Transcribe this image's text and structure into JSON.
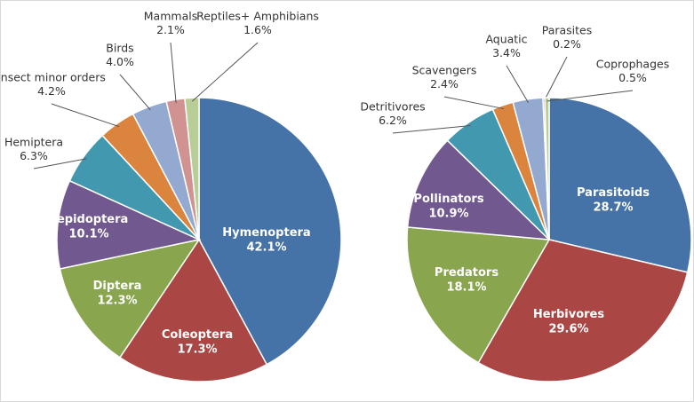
{
  "chart_data": [
    {
      "type": "pie",
      "categories": [
        "Hymenoptera",
        "Coleoptera",
        "Diptera",
        "Lepidoptera",
        "Hemiptera",
        "Insect minor orders",
        "Birds",
        "Mammals",
        "Reptiles+ Amphibians"
      ],
      "values": [
        42.1,
        17.3,
        12.3,
        10.1,
        6.3,
        4.2,
        4.0,
        2.1,
        1.6
      ],
      "value_labels": [
        "42.1%",
        "17.3%",
        "12.3%",
        "10.1%",
        "6.3%",
        "4.2%",
        "4.0%",
        "2.1%",
        "1.6%"
      ],
      "colors": [
        "#4572a7",
        "#aa4643",
        "#89a54e",
        "#71588f",
        "#4198af",
        "#db843d",
        "#93a9cf",
        "#d19392",
        "#b9cd96"
      ]
    },
    {
      "type": "pie",
      "categories": [
        "Parasitoids",
        "Herbivores",
        "Predators",
        "Pollinators",
        "Detritivores",
        "Scavengers",
        "Aquatic",
        "Parasites",
        "Coprophages"
      ],
      "values": [
        28.7,
        29.6,
        18.1,
        10.9,
        6.2,
        2.4,
        3.4,
        0.2,
        0.5
      ],
      "value_labels": [
        "28.7%",
        "29.6%",
        "18.1%",
        "10.9%",
        "6.2%",
        "2.4%",
        "3.4%",
        "0.2%",
        "0.5%"
      ],
      "colors": [
        "#4572a7",
        "#aa4643",
        "#89a54e",
        "#71588f",
        "#4198af",
        "#db843d",
        "#93a9cf",
        "#d19392",
        "#b9cd96"
      ]
    }
  ]
}
